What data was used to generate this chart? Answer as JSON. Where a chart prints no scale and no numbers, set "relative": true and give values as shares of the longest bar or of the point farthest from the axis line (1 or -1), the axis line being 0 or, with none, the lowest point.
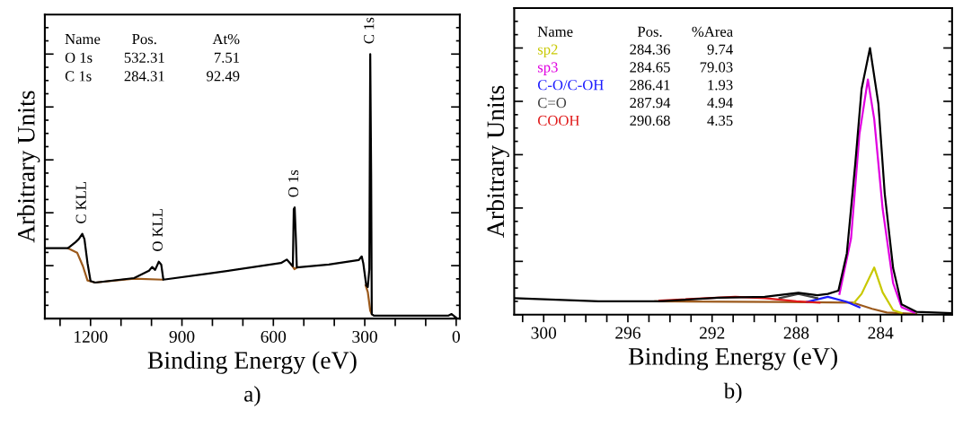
{
  "chart_data": [
    {
      "type": "line",
      "title": "a)",
      "xlabel": "Binding Energy (eV)",
      "ylabel": "Arbitrary Units",
      "relative": true,
      "tick_labels": "x",
      "legend": false,
      "grid": false,
      "xlim": [
        1350,
        -12
      ],
      "xticks": [
        {
          "value": 1300,
          "label": null
        },
        1200,
        {
          "value": 1100,
          "label": null
        },
        {
          "value": 1000,
          "label": null
        },
        900,
        {
          "value": 800,
          "label": null
        },
        {
          "value": 700,
          "label": null
        },
        600,
        {
          "value": 500,
          "label": null
        },
        {
          "value": 400,
          "label": null
        },
        300,
        {
          "value": 200,
          "label": null
        },
        {
          "value": 100,
          "label": null
        },
        0
      ],
      "annotations": [
        "Name",
        "Pos.",
        "At%",
        "O 1s",
        "532.31",
        "7.51",
        "C 1s",
        "284.31",
        "92.49",
        {
          "text": "C KLL",
          "x": 1227,
          "y": 0.32
        },
        {
          "text": "O KLL",
          "x": 976,
          "y": 0.215
        },
        {
          "text": "O 1s",
          "x": 530,
          "y": 0.42
        },
        {
          "text": "C 1s",
          "x": 282,
          "y": 1.0
        }
      ],
      "series": [
        {
          "color": "#9c5a1c",
          "x": [
            1274,
            1244,
            1225,
            1210,
            1185,
            1057,
            964,
            760,
            541,
            531,
            523,
            400,
            297,
            290,
            282,
            277
          ],
          "values": [
            0.266,
            0.249,
            0.198,
            0.144,
            0.136,
            0.151,
            0.147,
            null,
            0.204,
            0.187,
            0.193,
            null,
            0.125,
            0.1,
            0.03,
            0.017
          ]
        },
        {
          "color": "#000000",
          "x": [
            1350,
            1274,
            1249,
            1239,
            1227,
            1220,
            1210,
            1200,
            1185,
            1057,
            1008,
            998,
            988,
            976,
            968,
            961,
            811,
            575,
            556,
            541,
            536,
            533,
            530,
            526,
            523,
            418,
            320,
            310,
            305,
            295,
            290,
            285,
            282,
            279,
            277,
            270,
            25,
            15,
            0
          ],
          "values": [
            0.266,
            0.266,
            0.289,
            0.3,
            0.32,
            0.3,
            0.21,
            0.142,
            0.136,
            0.153,
            0.181,
            0.195,
            0.184,
            0.215,
            0.204,
            0.147,
            0.17,
            0.21,
            0.223,
            0.204,
            0.198,
            0.414,
            0.42,
            0.3,
            0.193,
            0.204,
            0.221,
            0.235,
            0.21,
            0.125,
            0.119,
            0.187,
            1.0,
            0.539,
            0.017,
            0.011,
            0.011,
            0.017,
            0.003
          ]
        }
      ]
    },
    {
      "type": "line",
      "title": "b)",
      "xlabel": "Binding Energy (eV)",
      "ylabel": "Arbitrary Units",
      "relative": true,
      "tick_labels": "x",
      "legend": false,
      "grid": false,
      "xlim": [
        301.4,
        280.6
      ],
      "xticks": [
        {
          "value": 301,
          "label": null
        },
        300,
        {
          "value": 299,
          "label": null
        },
        {
          "value": 298,
          "label": null
        },
        {
          "value": 297,
          "label": null
        },
        296,
        {
          "value": 295,
          "label": null
        },
        {
          "value": 294,
          "label": null
        },
        {
          "value": 293,
          "label": null
        },
        292,
        {
          "value": 291,
          "label": null
        },
        {
          "value": 290,
          "label": null
        },
        {
          "value": 289,
          "label": null
        },
        288,
        {
          "value": 287,
          "label": null
        },
        {
          "value": 286,
          "label": null
        },
        {
          "value": 285,
          "label": null
        },
        284,
        {
          "value": 283,
          "label": null
        },
        {
          "value": 282,
          "label": null
        },
        {
          "value": 281,
          "label": null
        }
      ],
      "annotations": [
        "Name",
        "Pos.",
        "%Area",
        "284.36",
        "9.74",
        "284.65",
        "79.03",
        "286.41",
        "1.93",
        "287.94",
        "4.94",
        "290.68",
        "4.35"
      ],
      "series": [
        {
          "color": "#9c5a1c",
          "x": [
            294.7,
            288.8,
            285.3,
            284.4,
            283.7,
            282.3
          ],
          "values": [
            0.05,
            0.048,
            0.045,
            0.022,
            0.008,
            0.003
          ]
        },
        {
          "name": "sp2",
          "color": "#c8c800",
          "x": [
            285.3,
            284.9,
            284.3,
            283.9,
            283.4,
            283.0
          ],
          "values": [
            0.041,
            0.078,
            0.177,
            0.084,
            0.017,
            0.006
          ]
        },
        {
          "name": "sp3",
          "color": "#e000e0",
          "x": [
            285.95,
            285.4,
            285.0,
            284.6,
            284.3,
            283.9,
            283.4,
            283.0,
            282.4
          ],
          "values": [
            0.078,
            0.286,
            0.678,
            0.882,
            0.734,
            0.398,
            0.118,
            0.028,
            0.008
          ]
        },
        {
          "name": "C-O/C-OH",
          "color": "#1a1aff",
          "x": [
            287.5,
            286.5,
            285.6,
            285.0
          ],
          "values": [
            0.048,
            0.067,
            0.048,
            0.028
          ]
        },
        {
          "name": "C=O",
          "color": "#404040",
          "x": [
            288.8,
            287.9,
            287.0
          ],
          "values": [
            0.062,
            0.078,
            0.062
          ]
        },
        {
          "name": "COOH",
          "color": "#e01a1a",
          "x": [
            294.5,
            290.9,
            289.5,
            288.0,
            286.9
          ],
          "values": [
            0.053,
            0.067,
            0.062,
            0.05,
            0.045
          ]
        },
        {
          "color": "#000000",
          "x": [
            301.4,
            297.4,
            294.5,
            291.7,
            289.5,
            287.9,
            287.0,
            286.5,
            286.0,
            285.6,
            285.2,
            284.9,
            284.5,
            284.1,
            283.8,
            283.4,
            283.0,
            282.3,
            280.6
          ],
          "values": [
            0.062,
            0.05,
            0.05,
            0.064,
            0.067,
            0.082,
            0.073,
            0.078,
            0.09,
            0.23,
            0.566,
            0.846,
            1.0,
            0.79,
            0.454,
            0.174,
            0.039,
            0.011,
            0.006
          ]
        }
      ]
    }
  ]
}
